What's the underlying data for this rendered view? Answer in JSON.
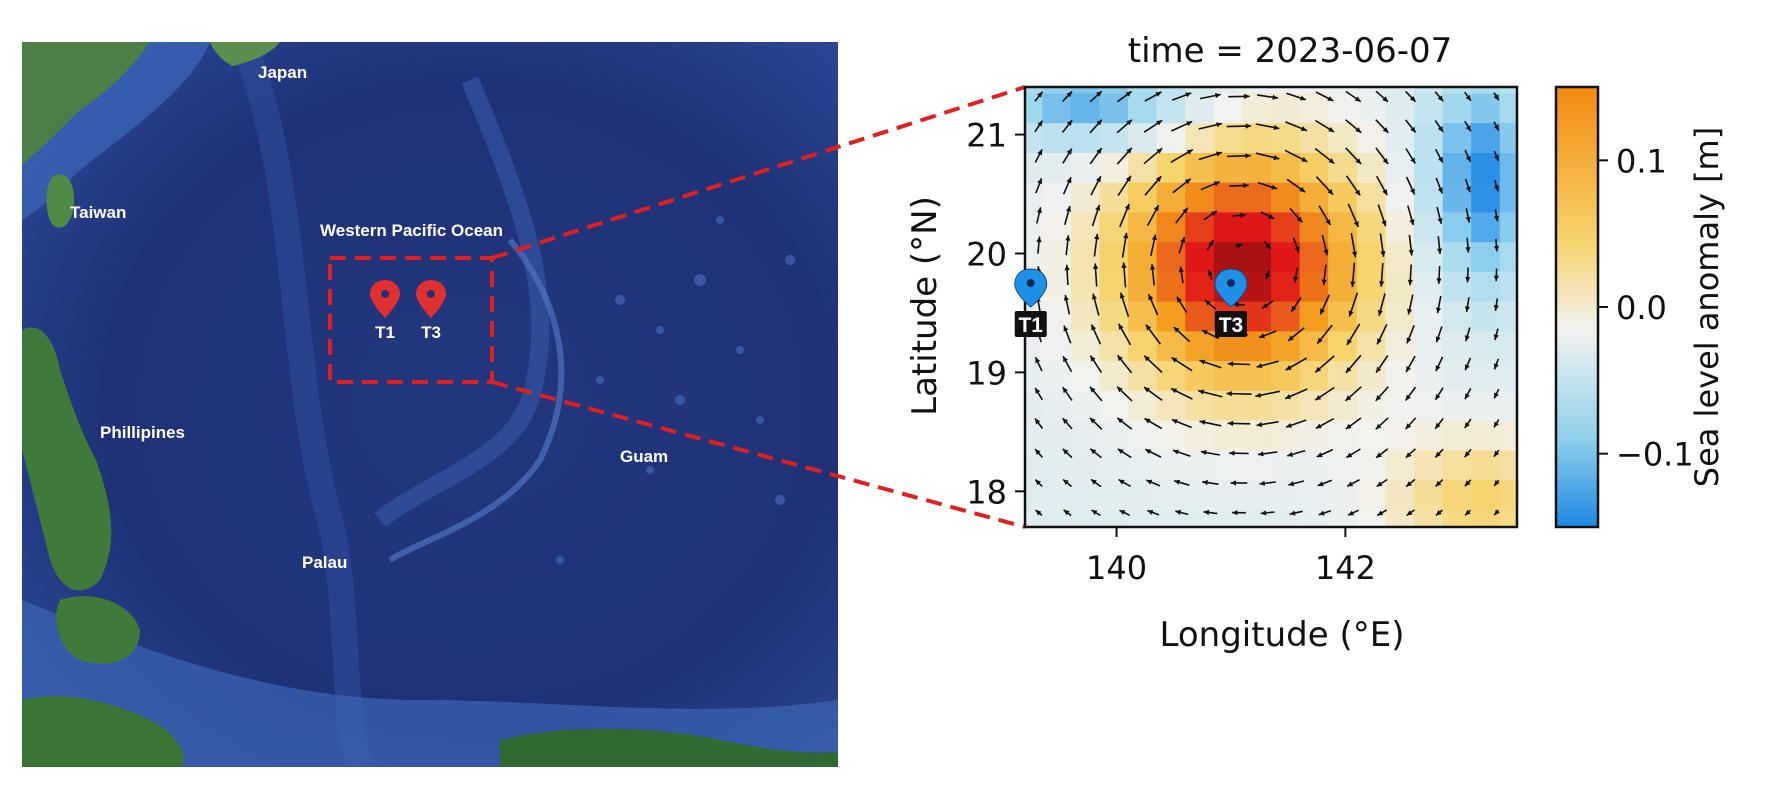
{
  "map": {
    "labels": {
      "japan": "Japan",
      "taiwan": "Taiwan",
      "ocean": "Western Pacific Ocean",
      "philippines": "Phillipines",
      "guam": "Guam",
      "palau": "Palau"
    },
    "markers": [
      {
        "id": "T1",
        "label": "T1"
      },
      {
        "id": "T3",
        "label": "T3"
      }
    ],
    "colors": {
      "ocean_deep": "#1a2d6e",
      "ocean_mid": "#2c4a9a",
      "land": "#3f7a3a",
      "marker": "#e03030",
      "zoom_box": "#e02020"
    }
  },
  "chart_data": {
    "type": "heatmap",
    "title": "time = 2023-06-07",
    "xlabel": "Longitude (°E)",
    "ylabel": "Latitude (°N)",
    "xlim": [
      139.2,
      143.5
    ],
    "ylim": [
      17.7,
      21.4
    ],
    "xticks": [
      140,
      142
    ],
    "yticks": [
      18,
      19,
      20,
      21
    ],
    "colorbar": {
      "label": "Sea level anomaly [m]",
      "range": [
        -0.15,
        0.15
      ],
      "ticks": [
        {
          "value": 0.1,
          "label": "0.1"
        },
        {
          "value": 0.0,
          "label": "0.0"
        },
        {
          "value": -0.1,
          "label": "−0.1"
        }
      ],
      "colors": [
        "#1e88e5",
        "#9ed8ee",
        "#f2f2f0",
        "#f6d36b",
        "#f39c1d",
        "#e01818",
        "#5a0a0a"
      ]
    },
    "eddy": {
      "center_lon": 141.1,
      "center_lat": 19.9,
      "peak_anomaly_m": 0.19,
      "rotation": "anticyclonic"
    },
    "stations": [
      {
        "label": "T1",
        "lon": 139.25,
        "lat": 19.55
      },
      {
        "label": "T3",
        "lon": 141.0,
        "lat": 19.55
      }
    ],
    "marker_color": "#1e90e8"
  }
}
